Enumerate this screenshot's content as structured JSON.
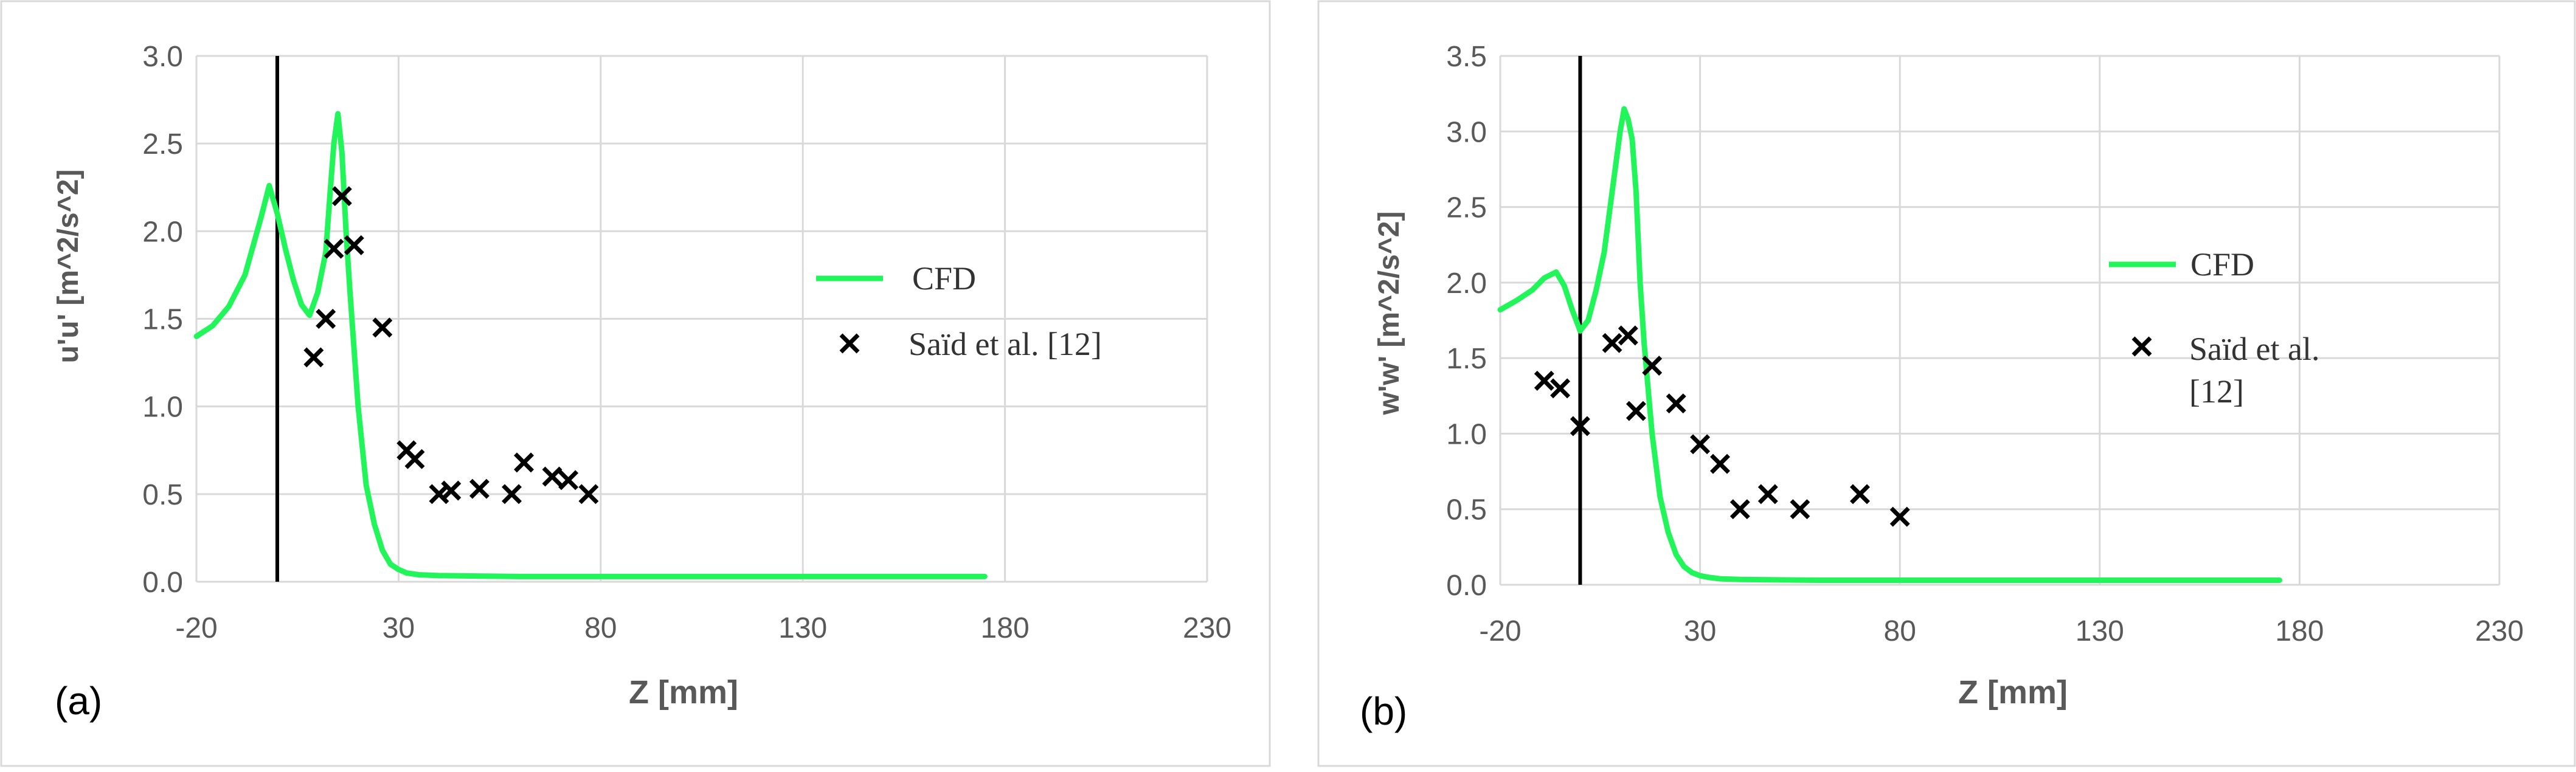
{
  "chart_data": [
    {
      "type": "line",
      "panel_label": "(a)",
      "title": "",
      "xlabel": "Z [mm]",
      "ylabel": "u'u' [m^2/s^2]",
      "xlim": [
        -20,
        230
      ],
      "ylim": [
        0.0,
        3.0
      ],
      "xticks": [
        -20,
        30,
        80,
        130,
        180,
        230
      ],
      "yticks": [
        "0.0",
        "0.5",
        "1.0",
        "1.5",
        "2.0",
        "2.5",
        "3.0"
      ],
      "grid": true,
      "vertical_line_x": 0,
      "legend_position": "right",
      "series": [
        {
          "name": "CFD",
          "style": "line",
          "color": "#22f55a",
          "x": [
            -20,
            -16,
            -12,
            -8,
            -4,
            -2,
            0,
            2,
            4,
            6,
            8,
            10,
            12,
            13,
            14,
            15,
            16,
            17,
            18,
            20,
            22,
            24,
            26,
            28,
            30,
            32,
            35,
            40,
            60,
            100,
            140,
            175
          ],
          "y": [
            1.4,
            1.46,
            1.57,
            1.75,
            2.08,
            2.26,
            2.1,
            1.9,
            1.72,
            1.58,
            1.52,
            1.65,
            1.88,
            2.2,
            2.5,
            2.67,
            2.45,
            2.0,
            1.65,
            1.0,
            0.55,
            0.33,
            0.18,
            0.1,
            0.07,
            0.05,
            0.04,
            0.035,
            0.03,
            0.03,
            0.03,
            0.03
          ]
        },
        {
          "name": "Saïd et al. [12]",
          "style": "marker-x",
          "color": "#000000",
          "x": [
            9,
            12,
            14,
            16,
            19,
            26,
            32,
            34,
            40,
            43,
            50,
            58,
            61,
            68,
            72,
            77
          ],
          "y": [
            1.28,
            1.5,
            1.9,
            2.2,
            1.92,
            1.45,
            0.75,
            0.7,
            0.5,
            0.52,
            0.53,
            0.5,
            0.68,
            0.6,
            0.58,
            0.5
          ]
        }
      ]
    },
    {
      "type": "line",
      "panel_label": "(b)",
      "title": "",
      "xlabel": "Z [mm]",
      "ylabel": "w'w' [m^2/s^2]",
      "xlim": [
        -20,
        230
      ],
      "ylim": [
        0.0,
        3.5
      ],
      "xticks": [
        -20,
        30,
        80,
        130,
        180,
        230
      ],
      "yticks": [
        "0.0",
        "0.5",
        "1.0",
        "1.5",
        "2.0",
        "2.5",
        "3.0",
        "3.5"
      ],
      "grid": true,
      "vertical_line_x": 0,
      "legend_position": "right",
      "series": [
        {
          "name": "CFD",
          "style": "line",
          "color": "#22f55a",
          "x": [
            -20,
            -16,
            -12,
            -9,
            -6,
            -4,
            -2,
            0,
            2,
            4,
            6,
            8,
            10,
            11,
            12,
            13,
            14,
            15,
            16,
            18,
            20,
            22,
            24,
            26,
            28,
            30,
            32,
            35,
            40,
            60,
            100,
            140,
            175
          ],
          "y": [
            1.82,
            1.88,
            1.95,
            2.03,
            2.07,
            1.98,
            1.82,
            1.68,
            1.75,
            1.95,
            2.2,
            2.6,
            3.0,
            3.15,
            3.08,
            2.95,
            2.6,
            2.0,
            1.6,
            1.0,
            0.58,
            0.35,
            0.2,
            0.12,
            0.08,
            0.06,
            0.05,
            0.04,
            0.035,
            0.03,
            0.03,
            0.03,
            0.03
          ]
        },
        {
          "name": "Saïd et al. [12]",
          "style": "marker-x",
          "color": "#000000",
          "x": [
            -9,
            -5,
            0,
            8,
            12,
            14,
            18,
            24,
            30,
            35,
            40,
            47,
            55,
            70,
            80
          ],
          "y": [
            1.35,
            1.3,
            1.05,
            1.6,
            1.65,
            1.15,
            1.45,
            1.2,
            0.93,
            0.8,
            0.5,
            0.6,
            0.5,
            0.6,
            0.45
          ]
        }
      ]
    }
  ]
}
